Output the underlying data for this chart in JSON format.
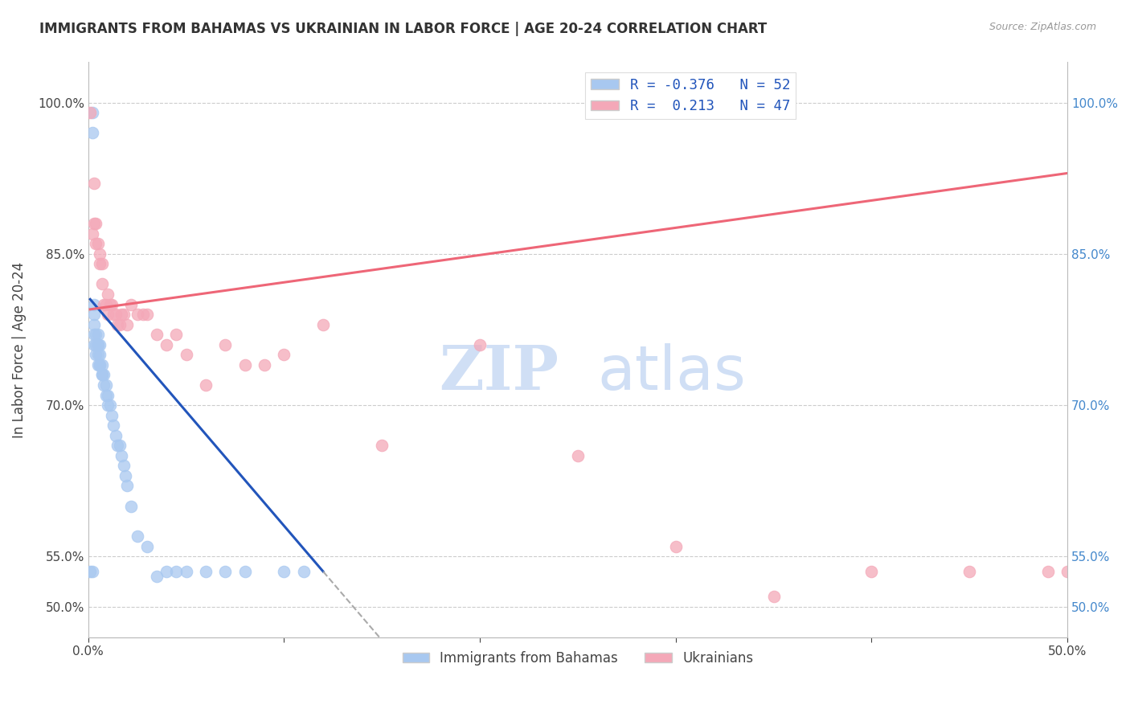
{
  "title": "IMMIGRANTS FROM BAHAMAS VS UKRAINIAN IN LABOR FORCE | AGE 20-24 CORRELATION CHART",
  "source": "Source: ZipAtlas.com",
  "ylabel": "In Labor Force | Age 20-24",
  "y_ticks": [
    0.5,
    0.55,
    0.7,
    0.85,
    1.0
  ],
  "y_tick_labels": [
    "50.0%",
    "55.0%",
    "70.0%",
    "85.0%",
    "100.0%"
  ],
  "x_min": 0.0,
  "x_max": 0.5,
  "y_min": 0.47,
  "y_max": 1.04,
  "bahamas_R": -0.376,
  "bahamas_N": 52,
  "ukrainian_R": 0.213,
  "ukrainian_N": 47,
  "bahamas_color": "#A8C8F0",
  "ukrainian_color": "#F4A8B8",
  "bahamas_line_color": "#2255BB",
  "ukrainian_line_color": "#EE6677",
  "watermark_zip": "ZIP",
  "watermark_atlas": "atlas",
  "watermark_color": "#D0DFF5",
  "legend_label_color": "#2255BB",
  "right_axis_color": "#4488CC",
  "bahamas_x": [
    0.001,
    0.002,
    0.002,
    0.002,
    0.003,
    0.003,
    0.003,
    0.003,
    0.003,
    0.004,
    0.004,
    0.004,
    0.005,
    0.005,
    0.005,
    0.005,
    0.005,
    0.006,
    0.006,
    0.006,
    0.006,
    0.007,
    0.007,
    0.007,
    0.008,
    0.008,
    0.009,
    0.009,
    0.01,
    0.01,
    0.011,
    0.012,
    0.013,
    0.014,
    0.015,
    0.016,
    0.017,
    0.018,
    0.019,
    0.02,
    0.022,
    0.025,
    0.03,
    0.035,
    0.04,
    0.045,
    0.05,
    0.06,
    0.07,
    0.08,
    0.1,
    0.11
  ],
  "bahamas_y": [
    0.535,
    0.99,
    0.97,
    0.535,
    0.8,
    0.79,
    0.78,
    0.77,
    0.76,
    0.77,
    0.76,
    0.75,
    0.77,
    0.76,
    0.76,
    0.75,
    0.74,
    0.76,
    0.75,
    0.74,
    0.74,
    0.74,
    0.73,
    0.73,
    0.73,
    0.72,
    0.72,
    0.71,
    0.71,
    0.7,
    0.7,
    0.69,
    0.68,
    0.67,
    0.66,
    0.66,
    0.65,
    0.64,
    0.63,
    0.62,
    0.6,
    0.57,
    0.56,
    0.53,
    0.535,
    0.535,
    0.535,
    0.535,
    0.535,
    0.535,
    0.535,
    0.535
  ],
  "ukrainian_x": [
    0.001,
    0.002,
    0.003,
    0.003,
    0.004,
    0.004,
    0.005,
    0.006,
    0.006,
    0.007,
    0.007,
    0.008,
    0.009,
    0.01,
    0.01,
    0.011,
    0.012,
    0.013,
    0.014,
    0.015,
    0.016,
    0.017,
    0.018,
    0.02,
    0.022,
    0.025,
    0.028,
    0.03,
    0.035,
    0.04,
    0.045,
    0.05,
    0.06,
    0.07,
    0.08,
    0.09,
    0.1,
    0.12,
    0.15,
    0.2,
    0.25,
    0.3,
    0.35,
    0.4,
    0.45,
    0.49,
    0.5
  ],
  "ukrainian_y": [
    0.99,
    0.87,
    0.92,
    0.88,
    0.88,
    0.86,
    0.86,
    0.85,
    0.84,
    0.84,
    0.82,
    0.8,
    0.8,
    0.81,
    0.79,
    0.8,
    0.8,
    0.79,
    0.79,
    0.78,
    0.78,
    0.79,
    0.79,
    0.78,
    0.8,
    0.79,
    0.79,
    0.79,
    0.77,
    0.76,
    0.77,
    0.75,
    0.72,
    0.76,
    0.74,
    0.74,
    0.75,
    0.78,
    0.66,
    0.76,
    0.65,
    0.56,
    0.51,
    0.535,
    0.535,
    0.535,
    0.535
  ]
}
